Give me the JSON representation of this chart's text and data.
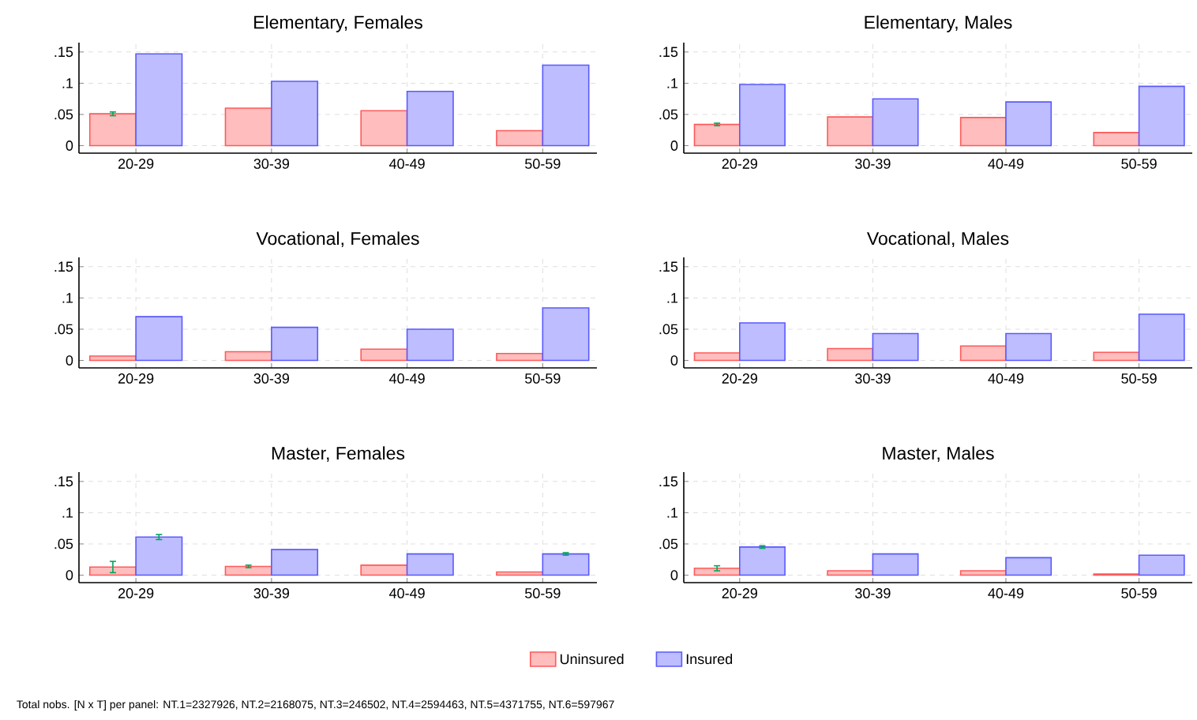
{
  "chart_data": [
    {
      "type": "bar",
      "title": "Elementary, Females",
      "categories": [
        "20-29",
        "30-39",
        "40-49",
        "50-59"
      ],
      "ylim": [
        -0.012,
        0.165
      ],
      "yticks": [
        0,
        {
          "value": 0.05,
          "label": ".05"
        },
        {
          "value": 0.1,
          "label": ".1"
        },
        {
          "value": 0.15,
          "label": ".15"
        }
      ],
      "grid": true,
      "series": [
        {
          "color": "#ff5a5a",
          "values": [
            0.051,
            0.06,
            0.056,
            0.024
          ],
          "errors": [
            0.003,
            null,
            null,
            null
          ]
        },
        {
          "color": "#5a5aff",
          "values": [
            0.147,
            0.103,
            0.087,
            0.129
          ]
        }
      ]
    },
    {
      "type": "bar",
      "title": "Elementary, Males",
      "categories": [
        "20-29",
        "30-39",
        "40-49",
        "50-59"
      ],
      "ylim": [
        -0.012,
        0.165
      ],
      "yticks": [
        0,
        {
          "value": 0.05,
          "label": ".05"
        },
        {
          "value": 0.1,
          "label": ".1"
        },
        {
          "value": 0.15,
          "label": ".15"
        }
      ],
      "grid": true,
      "series": [
        {
          "color": "#ff5a5a",
          "values": [
            0.034,
            0.046,
            0.045,
            0.021
          ],
          "errors": [
            0.002,
            null,
            null,
            null
          ]
        },
        {
          "color": "#5a5aff",
          "values": [
            0.098,
            0.075,
            0.07,
            0.095
          ]
        }
      ]
    },
    {
      "type": "bar",
      "title": "Vocational, Females",
      "categories": [
        "20-29",
        "30-39",
        "40-49",
        "50-59"
      ],
      "ylim": [
        -0.012,
        0.165
      ],
      "yticks": [
        0,
        {
          "value": 0.05,
          "label": ".05"
        },
        {
          "value": 0.1,
          "label": ".1"
        },
        {
          "value": 0.15,
          "label": ".15"
        }
      ],
      "grid": true,
      "series": [
        {
          "color": "#ff5a5a",
          "values": [
            0.007,
            0.014,
            0.018,
            0.011
          ]
        },
        {
          "color": "#5a5aff",
          "values": [
            0.07,
            0.053,
            0.05,
            0.084
          ]
        }
      ]
    },
    {
      "type": "bar",
      "title": "Vocational, Males",
      "categories": [
        "20-29",
        "30-39",
        "40-49",
        "50-59"
      ],
      "ylim": [
        -0.012,
        0.165
      ],
      "yticks": [
        0,
        {
          "value": 0.05,
          "label": ".05"
        },
        {
          "value": 0.1,
          "label": ".1"
        },
        {
          "value": 0.15,
          "label": ".15"
        }
      ],
      "grid": true,
      "series": [
        {
          "color": "#ff5a5a",
          "values": [
            0.012,
            0.019,
            0.023,
            0.013
          ]
        },
        {
          "color": "#5a5aff",
          "values": [
            0.06,
            0.043,
            0.043,
            0.074
          ]
        }
      ]
    },
    {
      "type": "bar",
      "title": "Master, Females",
      "categories": [
        "20-29",
        "30-39",
        "40-49",
        "50-59"
      ],
      "ylim": [
        -0.012,
        0.165
      ],
      "yticks": [
        0,
        {
          "value": 0.05,
          "label": ".05"
        },
        {
          "value": 0.1,
          "label": ".1"
        },
        {
          "value": 0.15,
          "label": ".15"
        }
      ],
      "grid": true,
      "series": [
        {
          "color": "#ff5a5a",
          "values": [
            0.013,
            0.014,
            0.016,
            0.005
          ],
          "errors": [
            0.009,
            0.002,
            null,
            null
          ]
        },
        {
          "color": "#5a5aff",
          "values": [
            0.061,
            0.041,
            0.034,
            0.034
          ],
          "errors": [
            0.004,
            null,
            null,
            0.002
          ]
        }
      ]
    },
    {
      "type": "bar",
      "title": "Master, Males",
      "categories": [
        "20-29",
        "30-39",
        "40-49",
        "50-59"
      ],
      "ylim": [
        -0.012,
        0.165
      ],
      "yticks": [
        0,
        {
          "value": 0.05,
          "label": ".05"
        },
        {
          "value": 0.1,
          "label": ".1"
        },
        {
          "value": 0.15,
          "label": ".15"
        }
      ],
      "grid": true,
      "legend": "bottom",
      "annotations": [
        "Total nobs. [N x T] per panel:  NT.1=2327926, NT.2=2168075, NT.3=246502, NT.4=2594463, NT.5=4371755, NT.6=597967"
      ],
      "series": [
        {
          "name": "Uninsured",
          "color": "#ff5a5a",
          "values": [
            0.011,
            0.007,
            0.007,
            0.002
          ],
          "errors": [
            0.004,
            null,
            null,
            null
          ]
        },
        {
          "name": "Insured",
          "color": "#5a5aff",
          "values": [
            0.045,
            0.034,
            0.028,
            0.032
          ],
          "errors": [
            0.002,
            null,
            null,
            null
          ]
        }
      ]
    }
  ]
}
